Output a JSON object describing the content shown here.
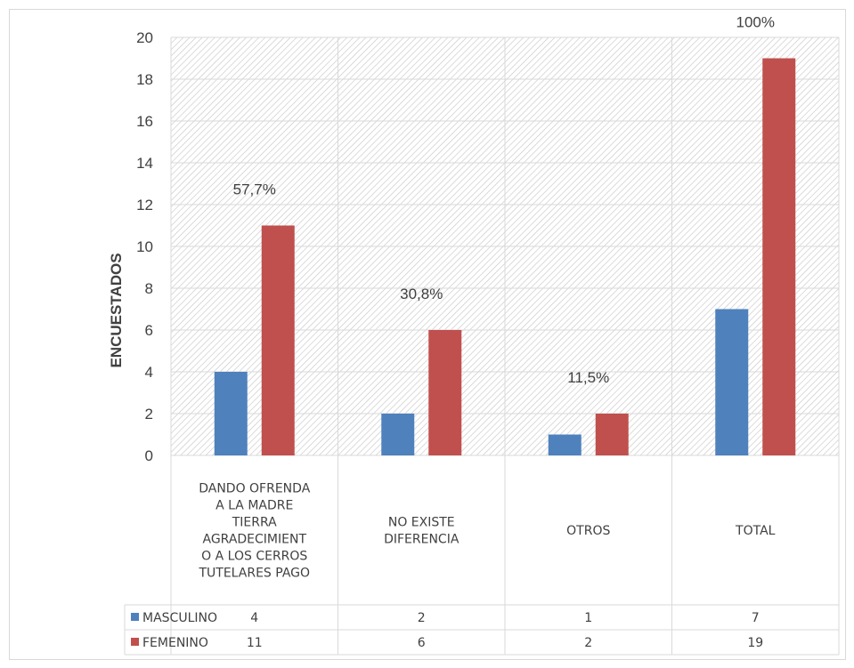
{
  "chart_data": {
    "type": "bar",
    "ylabel": "ENCUESTADOS",
    "ylim": [
      0,
      20
    ],
    "y_ticks": [
      "0",
      "2",
      "4",
      "6",
      "8",
      "10",
      "12",
      "14",
      "16",
      "18",
      "20"
    ],
    "grid": true,
    "legend": "data-table",
    "categories": [
      [
        "DANDO OFRENDA",
        "A LA MADRE",
        "TIERRA",
        "AGRADECIMIENT",
        "O A LOS CERROS",
        "TUTELARES PAGO"
      ],
      [
        "NO EXISTE",
        "DIFERENCIA"
      ],
      [
        "OTROS"
      ],
      [
        "TOTAL"
      ]
    ],
    "series": [
      {
        "name": "MASCULINO",
        "color": "#4f81bd",
        "values": [
          4,
          2,
          1,
          7
        ]
      },
      {
        "name": "FEMENINO",
        "color": "#c0504d",
        "values": [
          11,
          6,
          2,
          19
        ]
      }
    ],
    "annotations": [
      "57,7%",
      "30,8%",
      "11,5%",
      "100%"
    ]
  }
}
